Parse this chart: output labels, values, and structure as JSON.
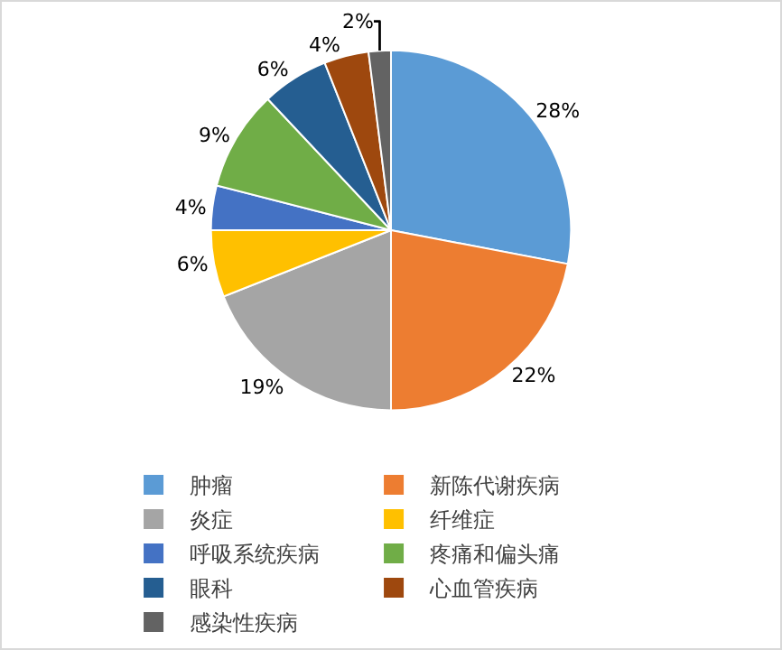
{
  "chart_data": {
    "type": "pie",
    "categories": [
      "肿瘤",
      "新陈代谢疾病",
      "炎症",
      "纤维症",
      "呼吸系统疾病",
      "疼痛和偏头痛",
      "眼科",
      "心血管疾病",
      "感染性疾病"
    ],
    "values": [
      28,
      22,
      19,
      6,
      4,
      9,
      6,
      4,
      2
    ],
    "value_labels": [
      "28%",
      "22%",
      "19%",
      "6%",
      "4%",
      "9%",
      "6%",
      "4%",
      "2%"
    ],
    "colors": [
      "#5b9bd5",
      "#ed7d31",
      "#a5a5a5",
      "#ffc000",
      "#4472c4",
      "#70ad47",
      "#255e91",
      "#9e480e",
      "#636363"
    ],
    "legend": "bottom"
  }
}
